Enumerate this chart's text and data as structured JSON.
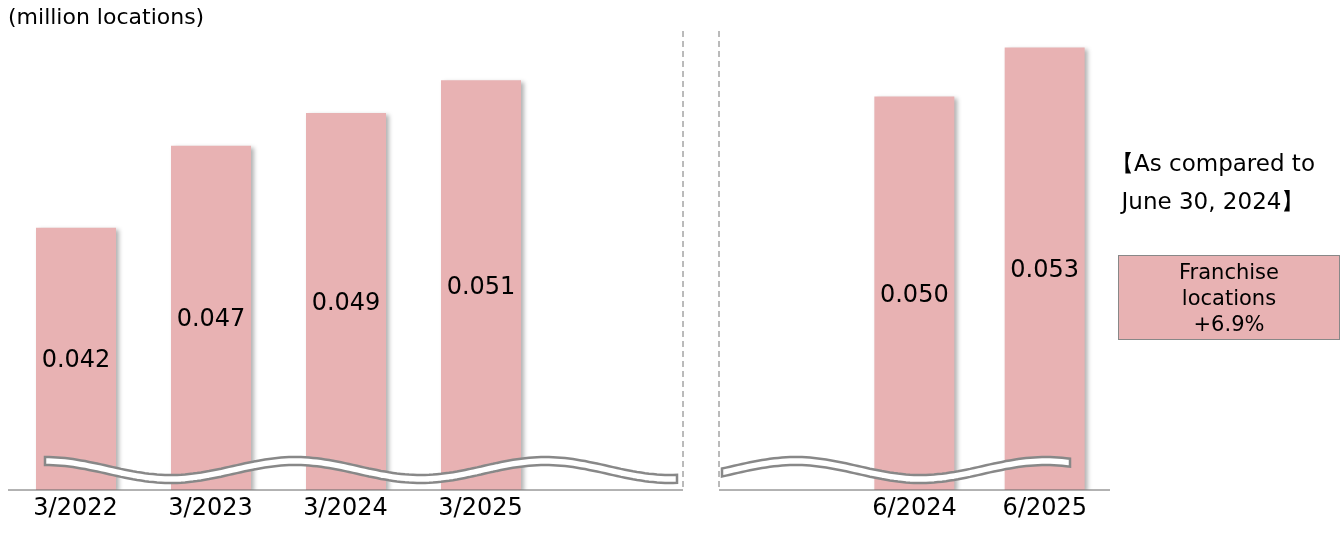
{
  "chart_data": [
    {
      "type": "bar",
      "categories": [
        "3/2022",
        "3/2023",
        "3/2024",
        "3/2025",
        null
      ],
      "values": [
        0.042,
        0.047,
        0.049,
        0.051,
        null
      ],
      "value_labels": [
        "0.042",
        "0.047",
        "0.049",
        "0.051",
        null
      ],
      "color": "#e8b2b3",
      "ylim": [
        0.026,
        0.054
      ],
      "tick_labels": "x",
      "annotations": [
        "(million locations)"
      ]
    },
    {
      "type": "bar",
      "categories": [
        null,
        "6/2024",
        "6/2025"
      ],
      "values": [
        null,
        0.05,
        0.053
      ],
      "value_labels": [
        null,
        "0.050",
        "0.053"
      ],
      "color": "#e8b2b3",
      "ylim": [
        0.026,
        0.054
      ],
      "tick_labels": "x",
      "annotations": [
        "【As compared to June 30, 2024】",
        "Franchise locations +6.9%"
      ]
    }
  ]
}
